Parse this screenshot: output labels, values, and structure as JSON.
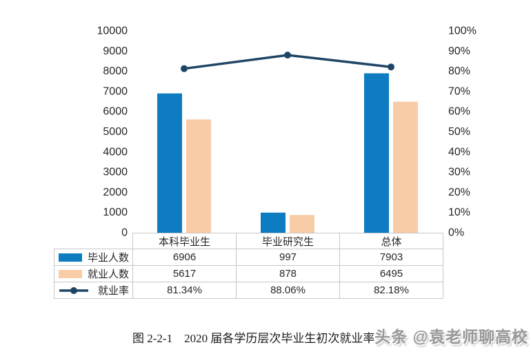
{
  "chart_data": {
    "type": "bar",
    "subtype": "grouped-bars-with-line-overlay",
    "title": "",
    "categories": [
      "本科毕业生",
      "毕业研究生",
      "总体"
    ],
    "bar_series": [
      {
        "name": "毕业人数",
        "values": [
          6906,
          997,
          7903
        ],
        "color": "#0d7cc1"
      },
      {
        "name": "就业人数",
        "values": [
          5617,
          878,
          6495
        ],
        "color": "#f9cca8"
      }
    ],
    "line_series": {
      "name": "就业率",
      "values": [
        81.34,
        88.06,
        82.18
      ],
      "labels": [
        "81.34%",
        "88.06%",
        "82.18%"
      ],
      "color": "#1f4566"
    },
    "left_axis": {
      "min": 0,
      "max": 10000,
      "step": 1000,
      "ticks": [
        "0",
        "1000",
        "2000",
        "3000",
        "4000",
        "5000",
        "6000",
        "7000",
        "8000",
        "9000",
        "10000"
      ]
    },
    "right_axis": {
      "min": 0,
      "max": 100,
      "step": 10,
      "ticks": [
        "0%",
        "10%",
        "20%",
        "30%",
        "40%",
        "50%",
        "60%",
        "70%",
        "80%",
        "90%",
        "100%"
      ]
    },
    "grid": false,
    "legend_position": "table-left",
    "table_values": {
      "毕业人数": [
        "6906",
        "997",
        "7903"
      ],
      "就业人数": [
        "5617",
        "878",
        "6495"
      ],
      "就业率": [
        "81.34%",
        "88.06%",
        "82.18%"
      ]
    }
  },
  "caption": "图 2-2-1　2020 届各学历层次毕业生初次就业率",
  "watermark": "头条 @袁老师聊高校"
}
